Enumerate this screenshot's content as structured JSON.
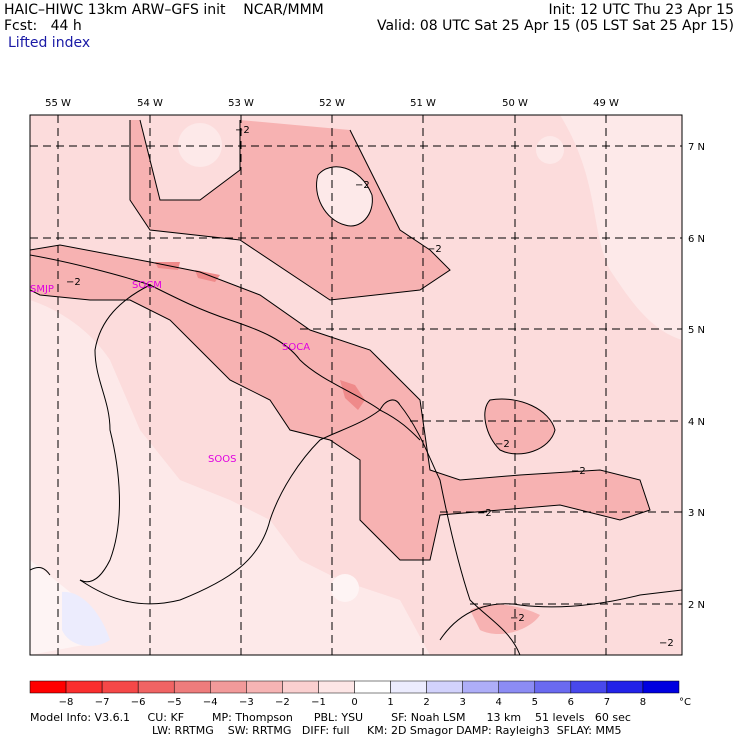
{
  "header": {
    "model": "HAIC–HIWC 13km ARW–GFS init    NCAR/MMM",
    "fcst": "Fcst:   44 h",
    "field": "Lifted index",
    "init": "Init: 12 UTC Thu 23 Apr 15",
    "valid": "Valid: 08 UTC Sat 25 Apr 15 (05 LST Sat 25 Apr 15)"
  },
  "map": {
    "lon_labels": [
      "55 W",
      "54 W",
      "53 W",
      "52 W",
      "51 W",
      "50 W",
      "49 W"
    ],
    "lat_labels": [
      "7 N",
      "6 N",
      "5 N",
      "4 N",
      "3 N",
      "2 N"
    ],
    "stations": [
      "SMJP",
      "SOCM",
      "SOCA",
      "SOOS"
    ],
    "contour_labels": [
      "−2",
      "−2",
      "−2",
      "−2",
      "−2",
      "−2",
      "−2",
      "−2",
      "−2"
    ]
  },
  "colorbar": {
    "ticks": [
      "−8",
      "−7",
      "−6",
      "−5",
      "−4",
      "−3",
      "−2",
      "−1",
      "0",
      "1",
      "2",
      "3",
      "4",
      "5",
      "6",
      "7",
      "8"
    ],
    "unit": "°C",
    "colors": [
      "#ff0000",
      "#fa2e2e",
      "#f54848",
      "#f06464",
      "#ee7c7c",
      "#f29a9a",
      "#f6b4b4",
      "#fad0d0",
      "#fde6e6",
      "#ffffff",
      "#ececfe",
      "#d2d2fc",
      "#aeaef8",
      "#8c8cf4",
      "#6a6af0",
      "#4848ec",
      "#2222e8",
      "#0000e0"
    ]
  },
  "footer": {
    "line1": "Model Info: V3.6.1     CU: KF        MP: Thompson      PBL: YSU        SF: Noah LSM      13 km    51 levels   60 sec",
    "line2": "LW: RRTMG    SW: RRTMG   DIFF: full     KM: 2D Smagor DAMP: Rayleigh3  SFLAY: MM5"
  }
}
